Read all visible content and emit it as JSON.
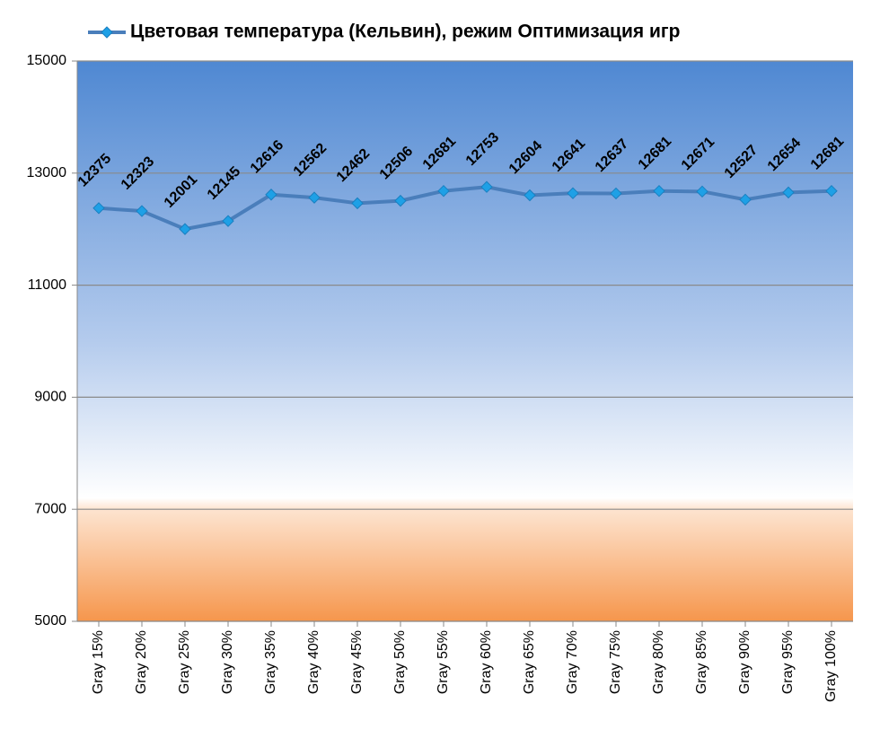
{
  "chart_data": {
    "type": "line",
    "categories": [
      "Gray 15%",
      "Gray 20%",
      "Gray 25%",
      "Gray 30%",
      "Gray 35%",
      "Gray 40%",
      "Gray 45%",
      "Gray 50%",
      "Gray 55%",
      "Gray 60%",
      "Gray 65%",
      "Gray 70%",
      "Gray 75%",
      "Gray 80%",
      "Gray 85%",
      "Gray 90%",
      "Gray 95%",
      "Gray 100%"
    ],
    "series": [
      {
        "name": "Цветовая температура (Кельвин), режим Оптимизация игр",
        "color": "#4a7ebb",
        "marker_color": "#1ea0e6",
        "values": [
          12375,
          12323,
          12001,
          12145,
          12616,
          12562,
          12462,
          12506,
          12681,
          12753,
          12604,
          12641,
          12637,
          12681,
          12671,
          12527,
          12654,
          12681
        ]
      }
    ],
    "ylim": [
      5000,
      15000
    ],
    "yticks": [
      5000,
      7000,
      9000,
      11000,
      13000,
      15000
    ],
    "grid": true
  }
}
